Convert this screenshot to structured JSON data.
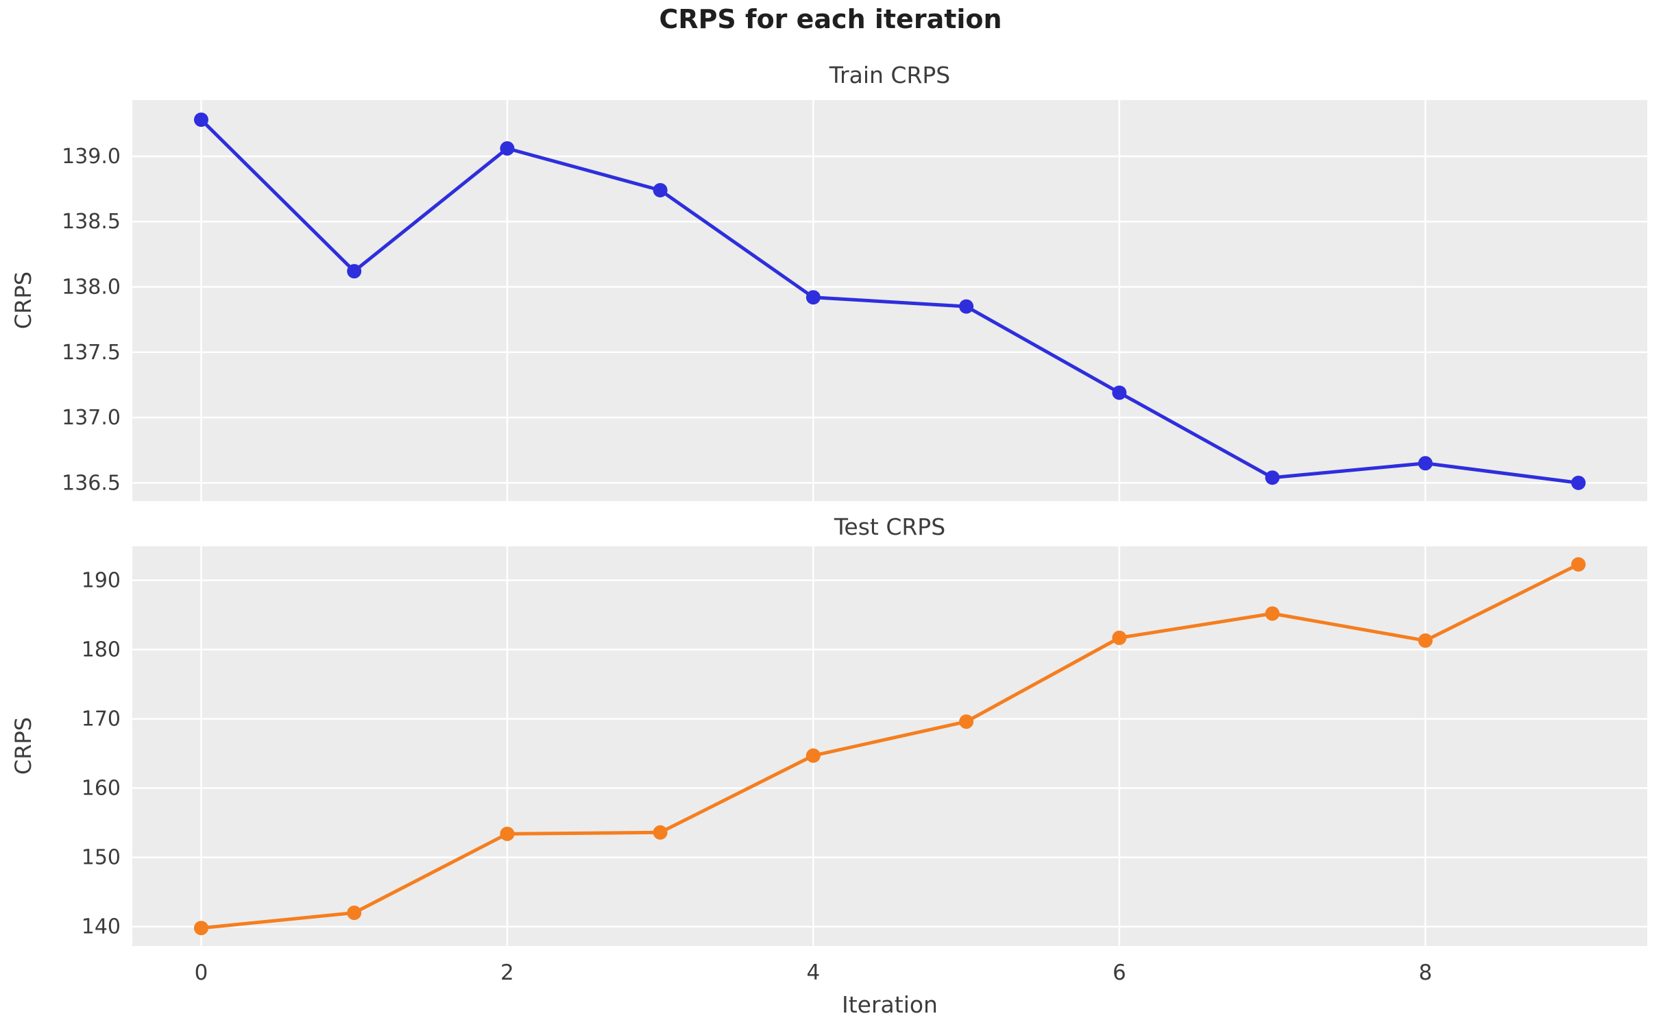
{
  "figure": {
    "title": "CRPS for each iteration",
    "colors": {
      "train": "#2e2edd",
      "test": "#f57e1f",
      "plot_bg": "#ececec",
      "grid": "#ffffff",
      "text": "#3c3c3c",
      "title_text": "#1f1f1f"
    }
  },
  "chart_data": [
    {
      "type": "line",
      "title": "Train CRPS",
      "ylabel": "CRPS",
      "xlabel": "",
      "grid": true,
      "legend": "none",
      "xlim": [
        -0.45,
        9.45
      ],
      "ylim": [
        136.36,
        139.43
      ],
      "xticks": [
        {
          "v": 0,
          "label": ""
        },
        {
          "v": 2,
          "label": ""
        },
        {
          "v": 4,
          "label": ""
        },
        {
          "v": 6,
          "label": ""
        },
        {
          "v": 8,
          "label": ""
        }
      ],
      "yticks": [
        {
          "v": 136.5,
          "label": "136.5"
        },
        {
          "v": 137.0,
          "label": "137.0"
        },
        {
          "v": 137.5,
          "label": "137.5"
        },
        {
          "v": 138.0,
          "label": "138.0"
        },
        {
          "v": 138.5,
          "label": "138.5"
        },
        {
          "v": 139.0,
          "label": "139.0"
        }
      ],
      "series": [
        {
          "id": "train-crps",
          "name": "Train CRPS",
          "color_key": "train",
          "x": [
            0,
            1,
            2,
            3,
            4,
            5,
            6,
            7,
            8,
            9
          ],
          "values": [
            139.28,
            138.12,
            139.06,
            138.74,
            137.92,
            137.85,
            137.19,
            136.54,
            136.65,
            136.5
          ]
        }
      ]
    },
    {
      "type": "line",
      "title": "Test CRPS",
      "ylabel": "CRPS",
      "xlabel": "Iteration",
      "grid": true,
      "legend": "none",
      "xlim": [
        -0.45,
        9.45
      ],
      "ylim": [
        137.2,
        194.9
      ],
      "xticks": [
        {
          "v": 0,
          "label": "0"
        },
        {
          "v": 2,
          "label": "2"
        },
        {
          "v": 4,
          "label": "4"
        },
        {
          "v": 6,
          "label": "6"
        },
        {
          "v": 8,
          "label": "8"
        }
      ],
      "yticks": [
        {
          "v": 140,
          "label": "140"
        },
        {
          "v": 150,
          "label": "150"
        },
        {
          "v": 160,
          "label": "160"
        },
        {
          "v": 170,
          "label": "170"
        },
        {
          "v": 180,
          "label": "180"
        },
        {
          "v": 190,
          "label": "190"
        }
      ],
      "series": [
        {
          "id": "test-crps",
          "name": "Test CRPS",
          "color_key": "test",
          "x": [
            0,
            1,
            2,
            3,
            4,
            5,
            6,
            7,
            8,
            9
          ],
          "values": [
            139.8,
            142.0,
            153.4,
            153.6,
            164.7,
            169.6,
            181.7,
            185.2,
            181.3,
            192.3
          ]
        }
      ]
    }
  ]
}
